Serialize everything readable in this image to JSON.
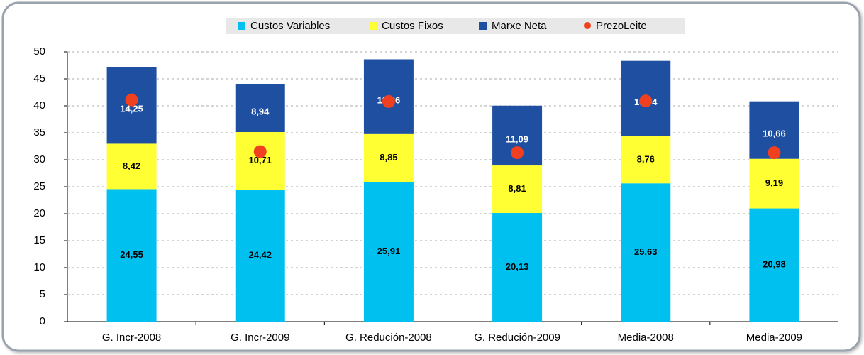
{
  "chart_data": {
    "type": "bar",
    "stacked": true,
    "categories": [
      "G. Incr-2008",
      "G. Incr-2009",
      "G. Redución-2008",
      "G. Redución-2009",
      "Media-2008",
      "Media-2009"
    ],
    "series": [
      {
        "name": "Custos Variables",
        "type": "bar",
        "color": "#00c0f0",
        "values": [
          24.55,
          24.42,
          25.91,
          20.13,
          25.63,
          20.98
        ],
        "value_labels": [
          "24,55",
          "24,42",
          "25,91",
          "20,13",
          "25,63",
          "20,98"
        ]
      },
      {
        "name": "Custos Fixos",
        "type": "bar",
        "color": "#ffff33",
        "values": [
          8.42,
          10.71,
          8.85,
          8.81,
          8.76,
          9.19
        ],
        "value_labels": [
          "8,42",
          "10,71",
          "8,85",
          "8,81",
          "8,76",
          "9,19"
        ]
      },
      {
        "name": "Marxe Neta",
        "type": "bar",
        "color": "#1f4fa0",
        "values": [
          14.25,
          8.94,
          13.86,
          11.09,
          13.94,
          10.66
        ],
        "value_labels": [
          "14,25",
          "8,94",
          "13,86",
          "11,09",
          "13,94",
          "10,66"
        ]
      },
      {
        "name": "PrezoLeite",
        "type": "scatter",
        "color": "#f04020",
        "values": [
          41.1,
          31.5,
          40.8,
          31.3,
          40.9,
          31.3
        ]
      }
    ],
    "ylim": [
      0,
      50
    ],
    "yticks": [
      0,
      5,
      10,
      15,
      20,
      25,
      30,
      35,
      40,
      45,
      50
    ],
    "grid": true,
    "legend": "top"
  }
}
